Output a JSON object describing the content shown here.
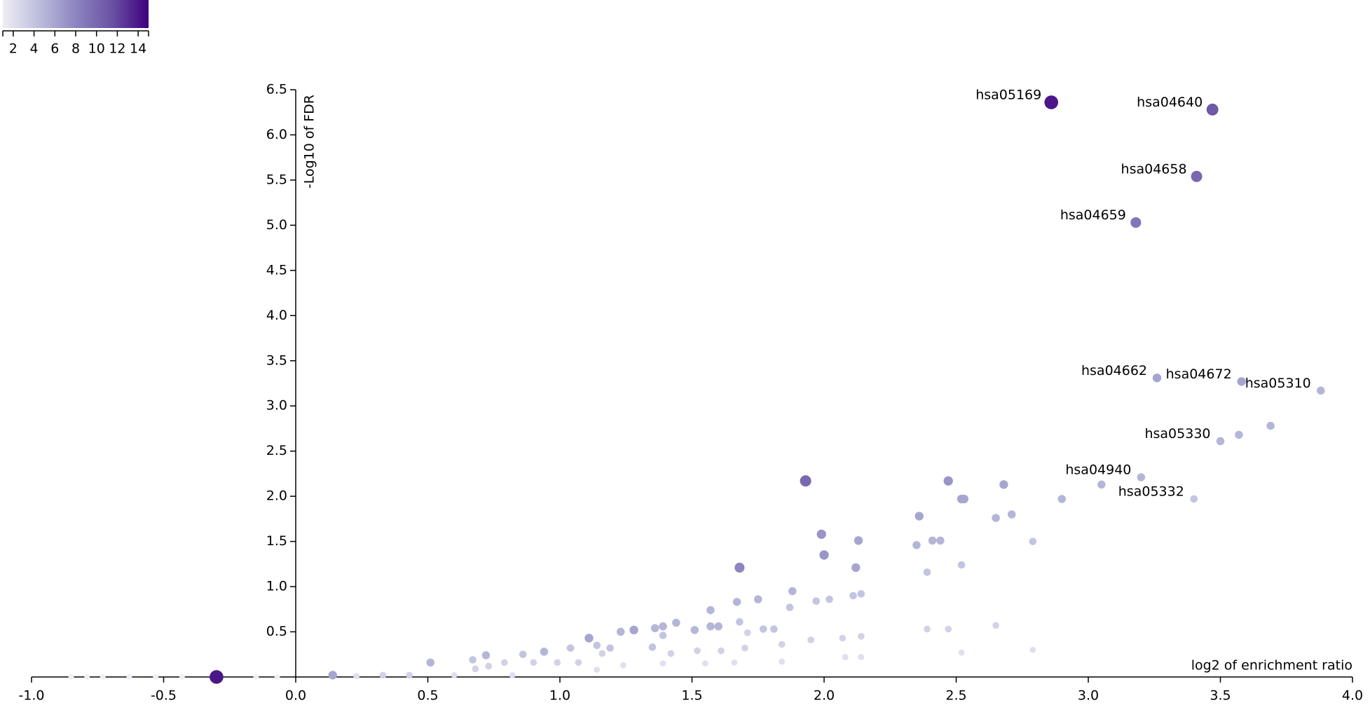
{
  "chart_data": {
    "type": "scatter",
    "x_label": "log2 of enrichment ratio",
    "y_label": "-Log10 of FDR",
    "xlim": [
      -1,
      4
    ],
    "ylim": [
      0,
      6.5
    ],
    "xticks": [
      {
        "value": -1,
        "label": "-1.0"
      },
      -0.5,
      {
        "value": 0,
        "label": "0.0"
      },
      0.5,
      {
        "value": 1,
        "label": "1.0"
      },
      1.5,
      {
        "value": 2,
        "label": "2.0"
      },
      2.5,
      {
        "value": 3,
        "label": "3.0"
      },
      3.5,
      {
        "value": 4,
        "label": "4.0"
      }
    ],
    "yticks": [
      0.5,
      {
        "value": 1,
        "label": "1.0"
      },
      1.5,
      {
        "value": 2,
        "label": "2.0"
      },
      2.5,
      {
        "value": 3,
        "label": "3.0"
      },
      3.5,
      {
        "value": 4,
        "label": "4.0"
      },
      4.5,
      {
        "value": 5,
        "label": "5.0"
      },
      5.5,
      {
        "value": 6,
        "label": "6.0"
      },
      6.5
    ],
    "colorbar": {
      "clim": [
        1,
        15
      ],
      "ticks": [
        2,
        4,
        6,
        8,
        10,
        12,
        14
      ],
      "colorscale": [
        "#efedf5",
        "#bcbddc",
        "#8c85c0",
        "#6a51a3",
        "#3f007d"
      ]
    },
    "x": [
      2.86,
      3.47,
      3.41,
      3.18,
      3.26,
      3.58,
      3.88,
      3.5,
      3.2,
      3.4,
      3.69,
      3.57,
      3.05,
      2.9,
      2.79,
      1.93,
      2.47,
      2.68,
      2.52,
      2.53,
      2.36,
      2.65,
      2.71,
      2.41,
      2.44,
      2.35,
      2.39,
      2.52,
      1.99,
      2.0,
      2.13,
      2.12,
      1.68,
      1.88,
      1.75,
      1.67,
      1.97,
      2.02,
      2.11,
      2.14,
      1.87,
      1.57,
      1.68,
      1.71,
      1.57,
      1.6,
      1.51,
      1.44,
      1.39,
      1.36,
      1.28,
      1.23,
      1.11,
      1.14,
      1.04,
      0.94,
      0.86,
      0.72,
      0.67,
      0.51,
      0.14,
      -0.3,
      1.77,
      1.81,
      1.84,
      1.39,
      1.19,
      1.35,
      1.42,
      1.16,
      1.07,
      0.99,
      0.9,
      0.79,
      0.73,
      0.68,
      1.52,
      1.61,
      1.7,
      1.95,
      2.07,
      2.14,
      2.39,
      2.47,
      2.65,
      2.79,
      2.52,
      2.14,
      2.08,
      1.84,
      1.66,
      1.55,
      1.39,
      1.24,
      1.14,
      0.82,
      0.6,
      0.43,
      0.33,
      0.23,
      -0.07,
      -0.15,
      -0.43,
      -0.53,
      -0.63,
      -0.73,
      -0.79,
      -0.85
    ],
    "y": [
      6.36,
      6.28,
      5.54,
      5.03,
      3.31,
      3.27,
      3.17,
      2.61,
      2.21,
      1.97,
      2.78,
      2.68,
      2.13,
      1.97,
      1.5,
      2.17,
      2.17,
      2.13,
      1.97,
      1.97,
      1.78,
      1.76,
      1.8,
      1.51,
      1.51,
      1.46,
      1.16,
      1.24,
      1.58,
      1.35,
      1.51,
      1.21,
      1.21,
      0.95,
      0.86,
      0.83,
      0.84,
      0.86,
      0.9,
      0.92,
      0.77,
      0.74,
      0.61,
      0.49,
      0.56,
      0.56,
      0.52,
      0.6,
      0.56,
      0.54,
      0.52,
      0.5,
      0.43,
      0.35,
      0.32,
      0.28,
      0.25,
      0.24,
      0.19,
      0.16,
      0.02,
      0,
      0.53,
      0.53,
      0.36,
      0.46,
      0.32,
      0.33,
      0.26,
      0.26,
      0.16,
      0.16,
      0.16,
      0.16,
      0.12,
      0.09,
      0.29,
      0.29,
      0.32,
      0.41,
      0.43,
      0.45,
      0.53,
      0.53,
      0.57,
      0.3,
      0.27,
      0.22,
      0.22,
      0.17,
      0.16,
      0.15,
      0.15,
      0.13,
      0.08,
      0.02,
      0.02,
      0.02,
      0.02,
      0.01,
      0,
      0,
      0,
      0,
      0,
      0,
      0,
      0
    ],
    "color_values": [
      14,
      11,
      10,
      9,
      6,
      6,
      5,
      5,
      5,
      4,
      5,
      5,
      5,
      5,
      4,
      10,
      7,
      6,
      6,
      6,
      6,
      5,
      5,
      5,
      5,
      5,
      4,
      4,
      7,
      7,
      6,
      6,
      8,
      5,
      5,
      5,
      4,
      4,
      4,
      4,
      4,
      5,
      4,
      3,
      5,
      5,
      5,
      5,
      5,
      5,
      6,
      5,
      6,
      4,
      4,
      5,
      4,
      5,
      4,
      5,
      6,
      14,
      4,
      4,
      3,
      4,
      4,
      4,
      3,
      3,
      3,
      3,
      3,
      3,
      3,
      3,
      3,
      3,
      3,
      3,
      3,
      3,
      3,
      3,
      3,
      2,
      2,
      2,
      2,
      2,
      2,
      2,
      2,
      2,
      2,
      2,
      2,
      3,
      3,
      2,
      1,
      1,
      1,
      1,
      1,
      1,
      1,
      1
    ],
    "labels": [
      "hsa05169",
      "hsa04640",
      "hsa04658",
      "hsa04659",
      "hsa04662",
      "hsa04672",
      "hsa05310",
      "hsa05330",
      "hsa04940",
      "hsa05332",
      null,
      null,
      null,
      null,
      null,
      null,
      null,
      null,
      null,
      null,
      null,
      null,
      null,
      null,
      null,
      null,
      null,
      null,
      null,
      null,
      null,
      null,
      null,
      null,
      null,
      null,
      null,
      null,
      null,
      null,
      null,
      null,
      null,
      null,
      null,
      null,
      null,
      null,
      null,
      null,
      null,
      null,
      null,
      null,
      null,
      null,
      null,
      null,
      null,
      null,
      null,
      null,
      null,
      null,
      null,
      null,
      null,
      null,
      null,
      null,
      null,
      null,
      null,
      null,
      null,
      null,
      null,
      null,
      null,
      null,
      null,
      null,
      null,
      null,
      null,
      null,
      null,
      null,
      null,
      null,
      null,
      null,
      null,
      null,
      null,
      null,
      null,
      null,
      null,
      null,
      null,
      null,
      null,
      null,
      null,
      null,
      null,
      null
    ]
  }
}
